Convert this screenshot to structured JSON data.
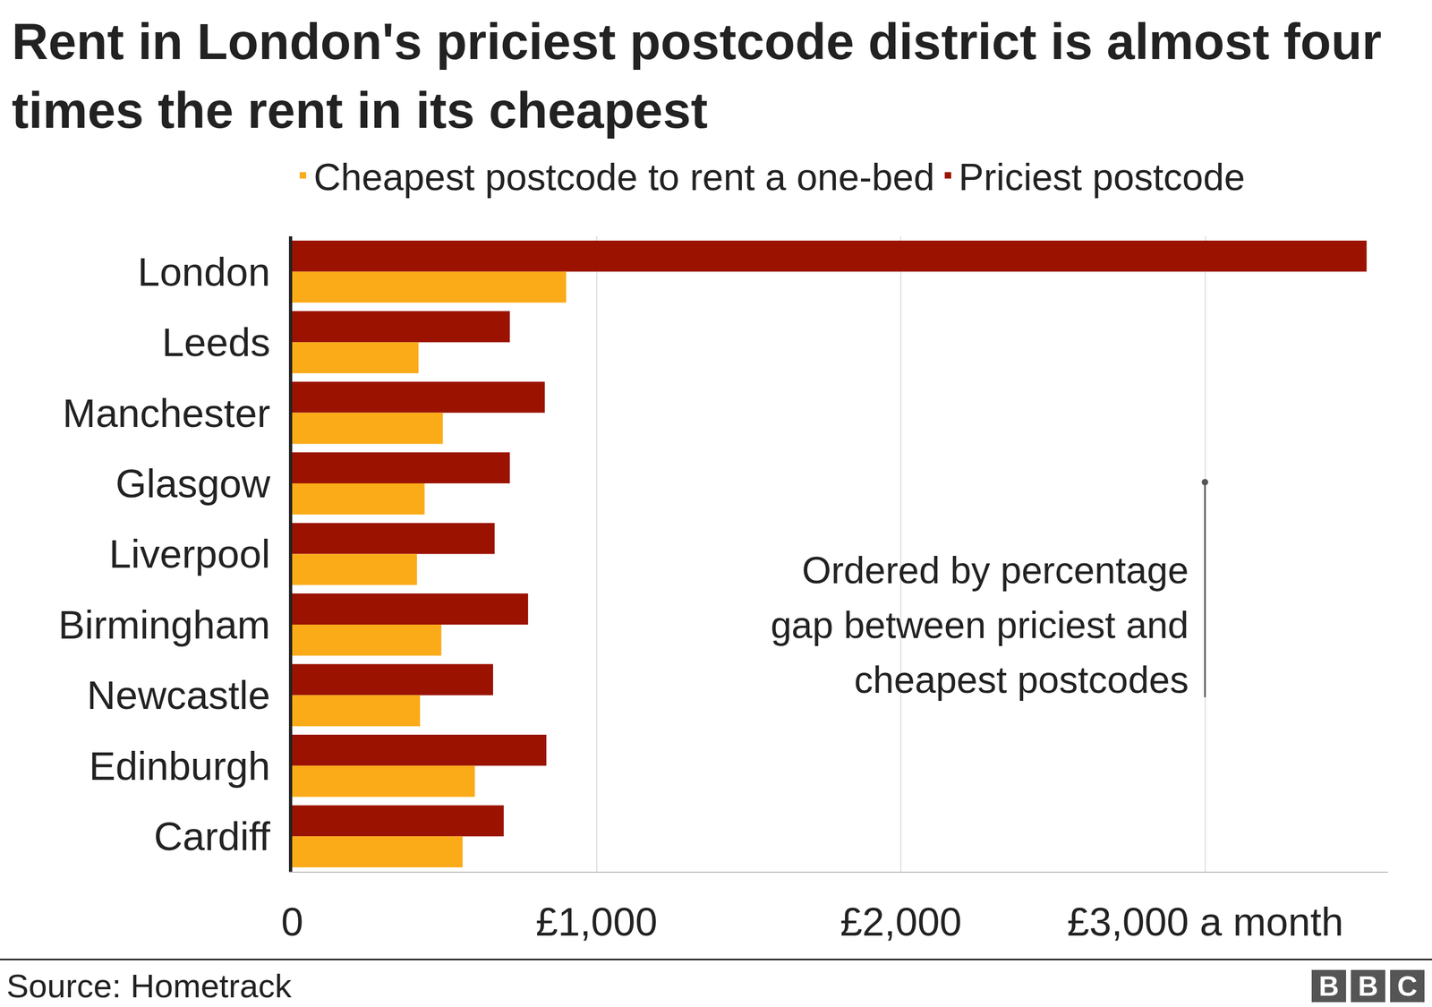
{
  "chart_data": {
    "type": "bar",
    "orientation": "horizontal",
    "title": "Rent in London's priciest postcode district is almost four times the rent in its cheapest",
    "categories": [
      "London",
      "Leeds",
      "Manchester",
      "Glasgow",
      "Liverpool",
      "Birmingham",
      "Newcastle",
      "Edinburgh",
      "Cardiff"
    ],
    "series": [
      {
        "name": "Cheapest postcode to rent a one-bed",
        "color": "#fbab18",
        "values": [
          900,
          415,
          495,
          435,
          410,
          490,
          420,
          600,
          560
        ]
      },
      {
        "name": "Priciest postcode",
        "color": "#9b1300",
        "values": [
          3530,
          715,
          830,
          715,
          665,
          775,
          660,
          835,
          695
        ]
      }
    ],
    "xlim": [
      0,
      3600
    ],
    "xticks": [
      0,
      {
        "value": 1000,
        "label": "£1,000"
      },
      {
        "value": 2000,
        "label": "£2,000"
      },
      {
        "value": 3000,
        "label": "£3,000 a month"
      }
    ],
    "grid": true,
    "legend": "top",
    "annotations": [
      "Ordered by percentage gap between priciest and cheapest postcodes"
    ],
    "source": "Source: Hometrack",
    "logo": "BBC"
  }
}
